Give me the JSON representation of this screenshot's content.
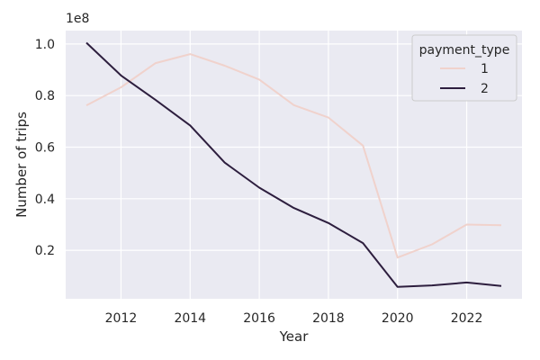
{
  "chart_data": {
    "type": "line",
    "title": "",
    "xlabel": "Year",
    "ylabel": "Number of trips",
    "y_offset_label": "1e8",
    "x": [
      2011,
      2012,
      2013,
      2014,
      2015,
      2016,
      2017,
      2018,
      2019,
      2020,
      2021,
      2022,
      2023
    ],
    "x_ticks": [
      2012,
      2014,
      2016,
      2018,
      2020,
      2022
    ],
    "x_tick_labels": [
      "2012",
      "2014",
      "2016",
      "2018",
      "2020",
      "2022"
    ],
    "xlim": [
      2010.4,
      2023.6
    ],
    "y_ticks": [
      0.2,
      0.4,
      0.6,
      0.8,
      1.0
    ],
    "y_tick_labels": [
      "0.2",
      "0.4",
      "0.6",
      "0.8",
      "1.0"
    ],
    "ylim": [
      0.012,
      1.052
    ],
    "grid": true,
    "legend": {
      "title": "payment_type",
      "placement": "top-right"
    },
    "series": [
      {
        "name": "1",
        "color": "#f0d2cc",
        "values": [
          0.762,
          0.832,
          0.926,
          0.961,
          0.916,
          0.862,
          0.763,
          0.715,
          0.606,
          0.172,
          0.223,
          0.3,
          0.297
        ]
      },
      {
        "name": "2",
        "color": "#2d1e3e",
        "values": [
          1.005,
          0.878,
          0.783,
          0.684,
          0.54,
          0.443,
          0.364,
          0.306,
          0.228,
          0.058,
          0.064,
          0.075,
          0.062
        ]
      }
    ],
    "colors": {
      "plot_background": "#eaeaf2",
      "grid": "#ffffff",
      "legend_background": "#eaeaf2",
      "legend_border": "#cccccc"
    }
  }
}
